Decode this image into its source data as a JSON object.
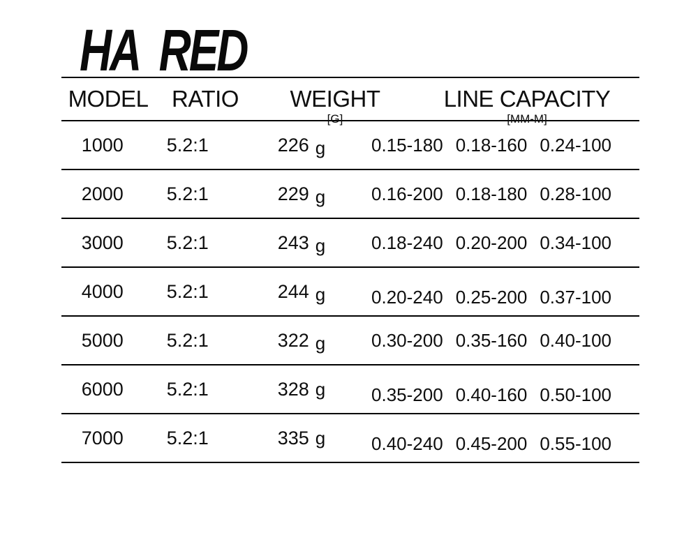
{
  "brand": {
    "title": "HA RED"
  },
  "colors": {
    "background": "#ffffff",
    "text": "#0e0e0e",
    "rule_lines": "#000000"
  },
  "table": {
    "headers": {
      "model": "MODEL",
      "ratio": "RATIO",
      "weight": "WEIGHT",
      "weight_unit": "[G]",
      "line_capacity": "LINE CAPACITY",
      "line_capacity_unit": "[MM-M]"
    },
    "rows": [
      {
        "model": "1000",
        "ratio": "5.2:1",
        "weight": "226",
        "weight_unit": "g",
        "capacities": [
          "0.15-180",
          "0.18-160",
          "0.24-100"
        ]
      },
      {
        "model": "2000",
        "ratio": "5.2:1",
        "weight": "229",
        "weight_unit": "g",
        "capacities": [
          "0.16-200",
          "0.18-180",
          "0.28-100"
        ]
      },
      {
        "model": "3000",
        "ratio": "5.2:1",
        "weight": "243",
        "weight_unit": "g",
        "capacities": [
          "0.18-240",
          "0.20-200",
          "0.34-100"
        ]
      },
      {
        "model": "4000",
        "ratio": "5.2:1",
        "weight": "244",
        "weight_unit": "g",
        "capacities": [
          "0.20-240",
          "0.25-200",
          "0.37-100"
        ]
      },
      {
        "model": "5000",
        "ratio": "5.2:1",
        "weight": "322",
        "weight_unit": "g",
        "capacities": [
          "0.30-200",
          "0.35-160",
          "0.40-100"
        ]
      },
      {
        "model": "6000",
        "ratio": "5.2:1",
        "weight": "328",
        "weight_unit": "g",
        "capacities": [
          "0.35-200",
          "0.40-160",
          "0.50-100"
        ]
      },
      {
        "model": "7000",
        "ratio": "5.2:1",
        "weight": "335",
        "weight_unit": "g",
        "capacities": [
          "0.40-240",
          "0.45-200",
          "0.55-100"
        ]
      }
    ]
  }
}
